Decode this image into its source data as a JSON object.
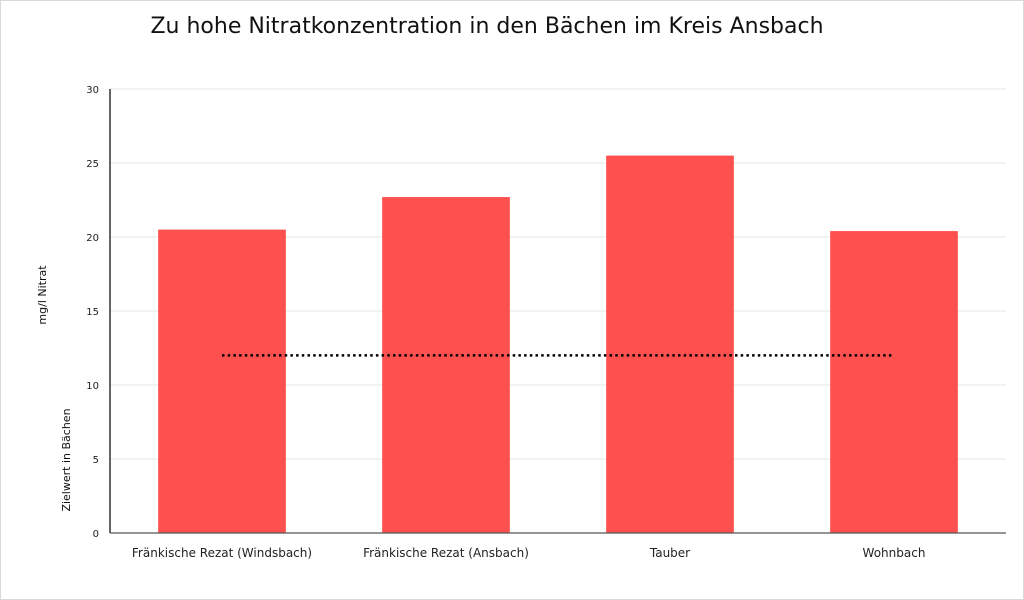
{
  "chart_data": {
    "type": "bar",
    "title": "Zu hohe Nitratkonzentration in den Bächen im Kreis Ansbach",
    "ylabel": "mg/l Nitrat",
    "ylabel_secondary": "Zielwert in Bächen",
    "xlabel": "",
    "categories": [
      "Fränkische Rezat (Windsbach)",
      "Fränkische Rezat (Ansbach)",
      "Tauber",
      "Wohnbach"
    ],
    "values": [
      20.5,
      22.7,
      25.5,
      20.4
    ],
    "target_line": {
      "value": 12,
      "style": "dotted",
      "color": "#000000"
    },
    "ylim": [
      0,
      30
    ],
    "yticks": [
      0,
      5,
      10,
      15,
      20,
      25,
      30
    ],
    "grid": true,
    "legend": "none",
    "colors": {
      "bar": "#ff5050",
      "grid": "#e4e4e4",
      "axis": "#000000"
    }
  }
}
